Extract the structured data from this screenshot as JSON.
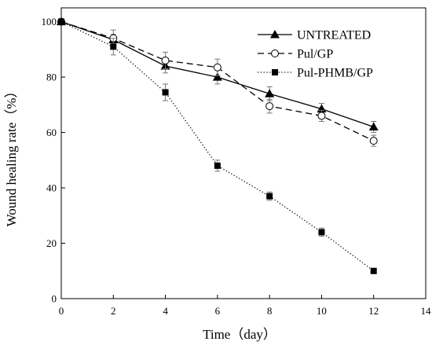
{
  "chart_data": {
    "type": "line",
    "xlabel": "Time（day）",
    "ylabel": "Wound healing rate（%）",
    "xlim": [
      0,
      14
    ],
    "ylim": [
      0,
      105
    ],
    "x_ticks": [
      0,
      2,
      4,
      6,
      8,
      10,
      12,
      14
    ],
    "y_ticks": [
      0,
      20,
      40,
      60,
      80,
      100
    ],
    "grid": false,
    "legend_position": "top-right",
    "x": [
      0,
      2,
      4,
      6,
      8,
      10,
      12
    ],
    "series": [
      {
        "name": "UNTREATED",
        "values": [
          100,
          93.5,
          84,
          80,
          74,
          68.5,
          62
        ],
        "errors": [
          0,
          2,
          2.5,
          2.5,
          2.5,
          2,
          2
        ],
        "marker": "filled-triangle",
        "line_style": "solid",
        "color": "#000000"
      },
      {
        "name": "Pul/GP",
        "values": [
          100,
          94,
          86,
          83.5,
          69.5,
          66,
          57
        ],
        "errors": [
          0,
          3,
          3,
          3,
          2.5,
          2,
          2
        ],
        "marker": "open-circle",
        "line_style": "dashed",
        "color": "#000000"
      },
      {
        "name": "Pul-PHMB/GP",
        "values": [
          100,
          91,
          74.5,
          48,
          37,
          24,
          10
        ],
        "errors": [
          0,
          3,
          3,
          2,
          1.5,
          1.5,
          0
        ],
        "marker": "filled-square",
        "line_style": "dotted",
        "color": "#000000"
      }
    ]
  }
}
